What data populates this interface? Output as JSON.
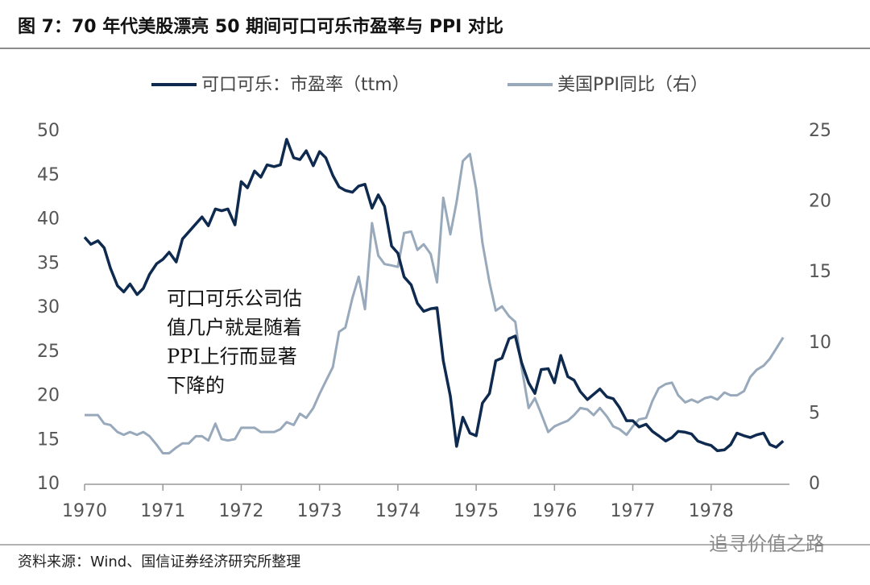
{
  "chart_data": {
    "type": "line",
    "title": "图 7：70 年代美股漂亮 50 期间可口可乐市盈率与 PPI 对比",
    "annotation": [
      "可口可乐公司估",
      "值几户就是随着",
      "PPI上行而显著",
      "下降的"
    ],
    "source": "资料来源：Wind、国信证券经济研究所整理",
    "watermark": "追寻价值之路",
    "xlim": [
      1970,
      1979
    ],
    "xticks": [
      1970,
      1971,
      1972,
      1973,
      1974,
      1975,
      1976,
      1977,
      1978
    ],
    "ylim": [
      10,
      50
    ],
    "yticks": [
      10,
      15,
      20,
      25,
      30,
      35,
      40,
      45,
      50
    ],
    "y2lim": [
      0,
      25
    ],
    "y2ticks": [
      0,
      5,
      10,
      15,
      20,
      25
    ],
    "grid": false,
    "legend": "top",
    "x": [
      1970,
      1970.08,
      1970.17,
      1970.25,
      1970.33,
      1970.42,
      1970.5,
      1970.58,
      1970.67,
      1970.75,
      1970.83,
      1970.92,
      1971,
      1971.08,
      1971.17,
      1971.25,
      1971.33,
      1971.42,
      1971.5,
      1971.58,
      1971.67,
      1971.75,
      1971.83,
      1971.92,
      1972,
      1972.08,
      1972.17,
      1972.25,
      1972.33,
      1972.42,
      1972.5,
      1972.58,
      1972.67,
      1972.75,
      1972.83,
      1972.92,
      1973,
      1973.08,
      1973.17,
      1973.25,
      1973.33,
      1973.42,
      1973.5,
      1973.58,
      1973.67,
      1973.75,
      1973.83,
      1973.92,
      1974,
      1974.08,
      1974.17,
      1974.25,
      1974.33,
      1974.42,
      1974.5,
      1974.58,
      1974.67,
      1974.75,
      1974.83,
      1974.92,
      1975,
      1975.08,
      1975.17,
      1975.25,
      1975.33,
      1975.42,
      1975.5,
      1975.58,
      1975.67,
      1975.75,
      1975.83,
      1975.92,
      1976,
      1976.08,
      1976.17,
      1976.25,
      1976.33,
      1976.42,
      1976.5,
      1976.58,
      1976.67,
      1976.75,
      1976.83,
      1976.92,
      1977,
      1977.08,
      1977.17,
      1977.25,
      1977.33,
      1977.42,
      1977.5,
      1977.58,
      1977.67,
      1977.75,
      1977.83,
      1977.92,
      1978,
      1978.08,
      1978.17,
      1978.25,
      1978.33,
      1978.42,
      1978.5,
      1978.58,
      1978.67,
      1978.75,
      1978.83,
      1978.92
    ],
    "series": [
      {
        "name": "可口可乐：市盈率（ttm）",
        "color": "#0f2a4f",
        "axis": "y",
        "values": [
          38,
          37.2,
          37.6,
          36.8,
          34.5,
          32.5,
          31.8,
          32.7,
          31.5,
          32.2,
          33.8,
          35.0,
          35.5,
          36.3,
          35.2,
          37.8,
          38.6,
          39.5,
          40.3,
          39.3,
          41.2,
          41.0,
          41.2,
          39.4,
          44.3,
          43.6,
          45.5,
          44.8,
          46.2,
          46.0,
          46.2,
          49.1,
          47.0,
          46.8,
          47.8,
          46.1,
          47.7,
          47.0,
          45.0,
          43.7,
          43.3,
          43.1,
          43.8,
          44.0,
          41.3,
          42.8,
          41.5,
          37.0,
          36.2,
          33.5,
          32.6,
          30.5,
          29.6,
          29.9,
          30.0,
          24.0,
          20.0,
          14.3,
          17.6,
          15.8,
          15.5,
          19.2,
          20.3,
          24.0,
          24.3,
          26.5,
          26.8,
          23.8,
          21.5,
          20.3,
          23.0,
          23.1,
          21.5,
          24.6,
          22.2,
          21.8,
          20.5,
          19.6,
          20.2,
          20.8,
          19.9,
          19.7,
          18.7,
          17.2,
          17.2,
          16.5,
          16.8,
          16.0,
          15.5,
          14.9,
          15.3,
          16.0,
          15.9,
          15.7,
          14.9,
          14.6,
          14.4,
          13.8,
          13.9,
          14.5,
          15.8,
          15.5,
          15.3,
          15.6,
          15.8,
          14.5,
          14.2,
          14.9
        ]
      },
      {
        "name": "美国PPI同比（右）",
        "color": "#98a9bb",
        "axis": "y2",
        "values": [
          4.9,
          4.9,
          4.9,
          4.3,
          4.2,
          3.7,
          3.5,
          3.7,
          3.5,
          3.7,
          3.4,
          2.8,
          2.2,
          2.2,
          2.6,
          2.9,
          2.9,
          3.4,
          3.4,
          3.1,
          4.3,
          3.2,
          3.1,
          3.2,
          4.0,
          4.0,
          4.0,
          3.7,
          3.7,
          3.7,
          3.9,
          4.4,
          4.2,
          5.0,
          4.7,
          5.4,
          6.4,
          7.3,
          8.3,
          10.8,
          11.1,
          13.2,
          14.7,
          12.4,
          18.5,
          16.2,
          15.6,
          15.5,
          15.4,
          17.8,
          17.9,
          16.6,
          17.0,
          16.3,
          14.3,
          20.3,
          17.7,
          20.0,
          22.9,
          23.4,
          20.9,
          17.1,
          14.3,
          12.3,
          12.6,
          11.9,
          11.5,
          8.3,
          5.4,
          6.1,
          5.0,
          3.7,
          4.1,
          4.3,
          4.5,
          4.9,
          5.4,
          5.3,
          4.9,
          5.4,
          4.8,
          4.1,
          3.9,
          3.5,
          4.1,
          4.6,
          4.7,
          5.9,
          6.8,
          7.1,
          7.2,
          6.3,
          5.8,
          6.0,
          5.8,
          6.1,
          6.2,
          6.0,
          6.5,
          6.3,
          6.3,
          6.6,
          7.6,
          8.1,
          8.4,
          8.9,
          9.6,
          10.4
        ]
      }
    ]
  }
}
